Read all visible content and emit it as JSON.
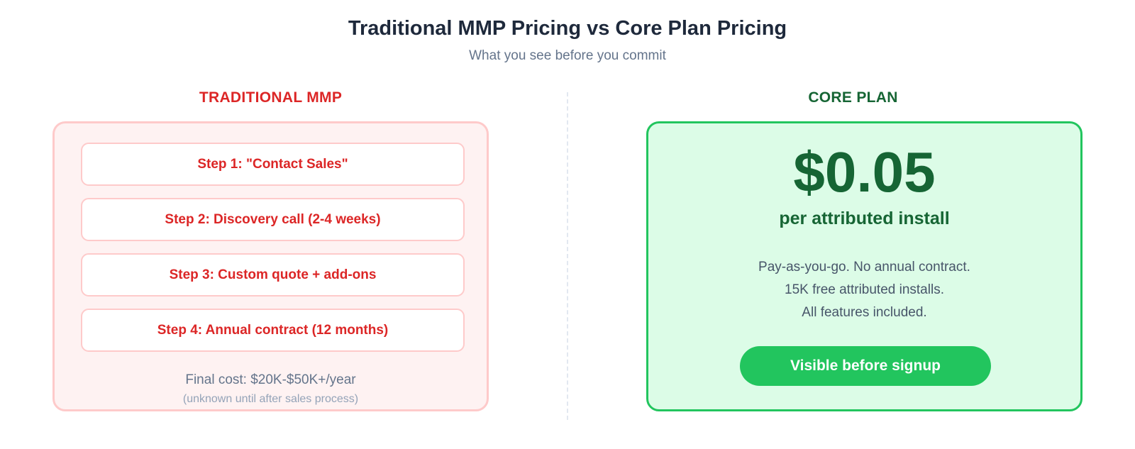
{
  "header": {
    "title": "Traditional MMP Pricing vs Core Plan Pricing",
    "subtitle": "What you see before you commit"
  },
  "left": {
    "heading": "TRADITIONAL MMP",
    "steps": [
      "Step 1: \"Contact Sales\"",
      "Step 2: Discovery call (2-4 weeks)",
      "Step 3: Custom quote + add-ons",
      "Step 4: Annual contract (12 months)"
    ],
    "final_cost": "Final cost: $20K-$50K+/year",
    "final_note": "(unknown until after sales process)"
  },
  "right": {
    "heading": "CORE PLAN",
    "price": "$0.05",
    "price_unit": "per attributed install",
    "features": [
      "Pay-as-you-go. No annual contract.",
      "15K free attributed installs.",
      "All features included."
    ],
    "cta_label": "Visible before signup"
  },
  "colors": {
    "traditional_accent": "#dc2626",
    "traditional_bg": "#fef2f2",
    "traditional_border": "#fecaca",
    "core_accent": "#166534",
    "core_bg": "#dcfce7",
    "core_border": "#22c55e",
    "cta_bg": "#22c55e"
  }
}
